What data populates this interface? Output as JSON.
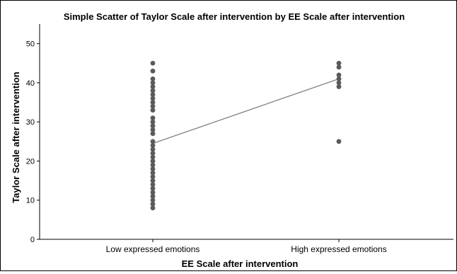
{
  "chart_data": {
    "type": "scatter",
    "title": "Simple Scatter of Taylor Scale after intervention by EE Scale after intervention",
    "xlabel": "EE Scale after intervention",
    "ylabel": "Taylor Scale after intervention",
    "categories": [
      "Low expressed emotions",
      "High expressed emotions"
    ],
    "ylim": [
      0,
      55
    ],
    "yticks": [
      0,
      10,
      20,
      30,
      40,
      50
    ],
    "grid": false,
    "points": [
      {
        "x": "Low expressed emotions",
        "y": [
          8,
          9,
          10,
          11,
          12,
          13,
          14,
          15,
          16,
          17,
          18,
          19,
          20,
          21,
          22,
          23,
          24,
          25,
          27,
          28,
          29,
          30,
          31,
          33,
          34,
          35,
          36,
          37,
          38,
          39,
          40,
          41,
          43,
          45
        ]
      },
      {
        "x": "High expressed emotions",
        "y": [
          25,
          39,
          40,
          41,
          42,
          44,
          45
        ]
      }
    ],
    "fit_line": {
      "type": "linear",
      "y_start": 24.5,
      "y_end": 41
    },
    "colors": {
      "points": "#5a5a5a",
      "line": "#808080",
      "axis": "#000000"
    }
  }
}
